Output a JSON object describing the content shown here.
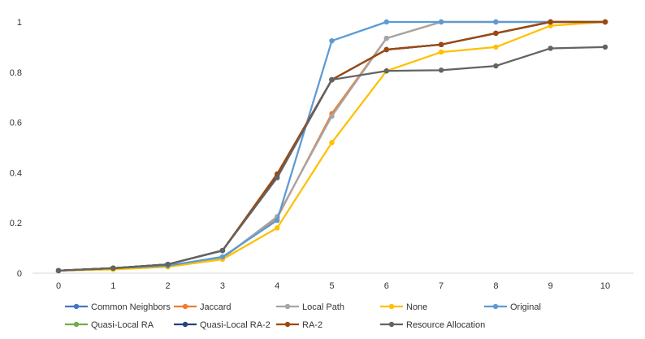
{
  "chart_data": {
    "type": "line",
    "title": "",
    "xlabel": "",
    "ylabel": "",
    "x": [
      0,
      1,
      2,
      3,
      4,
      5,
      6,
      7,
      8,
      9,
      10
    ],
    "xlim": [
      0,
      10
    ],
    "ylim": [
      0,
      1
    ],
    "y_ticks": [
      0,
      0.2,
      0.4,
      0.6,
      0.8,
      1
    ],
    "y_tick_labels": [
      "0",
      "0.2",
      "0.4",
      "0.6",
      "0.8",
      "1"
    ],
    "x_tick_labels": [
      "0",
      "1",
      "2",
      "3",
      "4",
      "5",
      "6",
      "7",
      "8",
      "9",
      "10"
    ],
    "grid": false,
    "legend_position": "bottom",
    "series": [
      {
        "name": "Common Neighbors",
        "color": "#4472C4",
        "values": [
          0.01,
          0.02,
          0.035,
          0.09,
          0.39,
          0.77,
          0.89,
          0.91,
          0.955,
          1.0,
          1.0
        ]
      },
      {
        "name": "Jaccard",
        "color": "#ED7D31",
        "values": [
          0.01,
          0.02,
          0.03,
          0.06,
          0.22,
          0.635,
          0.935,
          1.0,
          1.0,
          1.0,
          1.0
        ]
      },
      {
        "name": "Local Path",
        "color": "#A5A5A5",
        "values": [
          0.01,
          0.02,
          0.03,
          0.06,
          0.225,
          0.625,
          0.935,
          1.0,
          1.0,
          1.0,
          1.0
        ]
      },
      {
        "name": "None",
        "color": "#FFC000",
        "values": [
          0.01,
          0.015,
          0.025,
          0.055,
          0.18,
          0.52,
          0.805,
          0.88,
          0.9,
          0.985,
          1.0
        ]
      },
      {
        "name": "Original",
        "color": "#5B9BD5",
        "values": [
          0.01,
          0.02,
          0.03,
          0.065,
          0.21,
          0.925,
          1.0,
          1.0,
          1.0,
          1.0,
          1.0
        ]
      },
      {
        "name": "Quasi-Local RA",
        "color": "#70AD47",
        "values": [
          0.01,
          0.02,
          0.035,
          0.09,
          0.39,
          0.77,
          0.89,
          0.91,
          0.955,
          1.0,
          1.0
        ]
      },
      {
        "name": "Quasi-Local RA-2",
        "color": "#264478",
        "values": [
          0.01,
          0.02,
          0.035,
          0.09,
          0.39,
          0.77,
          0.89,
          0.91,
          0.955,
          1.0,
          1.0
        ]
      },
      {
        "name": "RA-2",
        "color": "#9E480E",
        "values": [
          0.01,
          0.02,
          0.035,
          0.09,
          0.395,
          0.77,
          0.89,
          0.91,
          0.955,
          1.0,
          1.0
        ]
      },
      {
        "name": "Resource Allocation",
        "color": "#636363",
        "values": [
          0.01,
          0.02,
          0.035,
          0.09,
          0.38,
          0.77,
          0.805,
          0.808,
          0.825,
          0.895,
          0.9
        ]
      }
    ]
  }
}
